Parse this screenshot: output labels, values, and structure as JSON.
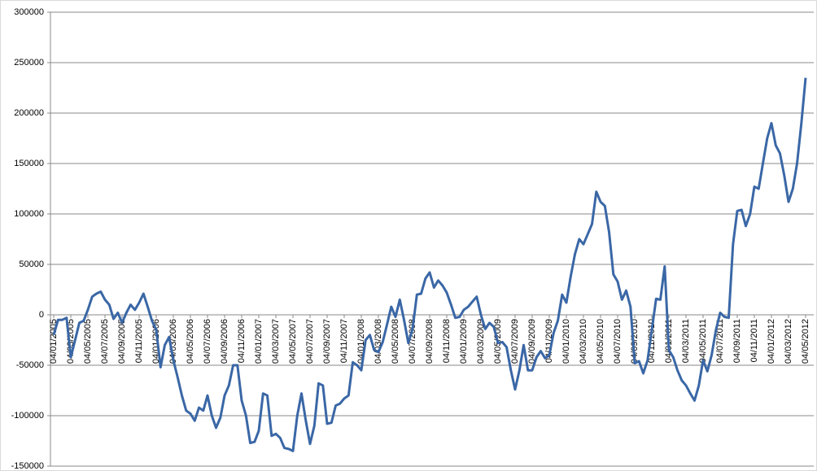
{
  "chart_data": {
    "type": "line",
    "color": "#3a67a6",
    "ylim": [
      -150000,
      300000
    ],
    "yticks": [
      -150000,
      -100000,
      -50000,
      0,
      50000,
      100000,
      150000,
      200000,
      250000,
      300000
    ],
    "grid": true,
    "categories": [
      "04/01/2005",
      null,
      null,
      null,
      "04/03/2005",
      null,
      null,
      null,
      "04/05/2005",
      null,
      null,
      null,
      "04/07/2005",
      null,
      null,
      null,
      "04/09/2005",
      null,
      null,
      null,
      "04/11/2005",
      null,
      null,
      null,
      "04/01/2006",
      null,
      null,
      null,
      "04/03/2006",
      null,
      null,
      null,
      "04/05/2006",
      null,
      null,
      null,
      "04/07/2006",
      null,
      null,
      null,
      "04/09/2006",
      null,
      null,
      null,
      "04/11/2006",
      null,
      null,
      null,
      "04/01/2007",
      null,
      null,
      null,
      "04/03/2007",
      null,
      null,
      null,
      "04/05/2007",
      null,
      null,
      null,
      "04/07/2007",
      null,
      null,
      null,
      "04/09/2007",
      null,
      null,
      null,
      "04/11/2007",
      null,
      null,
      null,
      "04/01/2008",
      null,
      null,
      null,
      "04/03/2008",
      null,
      null,
      null,
      "04/05/2008",
      null,
      null,
      null,
      "04/07/2008",
      null,
      null,
      null,
      "04/09/2008",
      null,
      null,
      null,
      "04/11/2008",
      null,
      null,
      null,
      "04/01/2009",
      null,
      null,
      null,
      "04/03/2009",
      null,
      null,
      null,
      "04/05/2009",
      null,
      null,
      null,
      "04/07/2009",
      null,
      null,
      null,
      "04/09/2009",
      null,
      null,
      null,
      "04/11/2009",
      null,
      null,
      null,
      "04/01/2010",
      null,
      null,
      null,
      "04/03/2010",
      null,
      null,
      null,
      "04/05/2010",
      null,
      null,
      null,
      "04/07/2010",
      null,
      null,
      null,
      "04/09/2010",
      null,
      null,
      null,
      "04/11/2010",
      null,
      null,
      null,
      "04/01/2011",
      null,
      null,
      null,
      "04/03/2011",
      null,
      null,
      null,
      "04/05/2011",
      null,
      null,
      null,
      "04/07/2011",
      null,
      null,
      null,
      "04/09/2011",
      null,
      null,
      null,
      "04/11/2011",
      null,
      null,
      null,
      "04/01/2012",
      null,
      null,
      null,
      "04/03/2012",
      null,
      null,
      null,
      "04/05/2012"
    ],
    "values": [
      -20000,
      -5000,
      -5000,
      -3000,
      -42000,
      -25000,
      -8000,
      -6000,
      5000,
      18000,
      21000,
      23000,
      15000,
      10000,
      -4000,
      2000,
      -8000,
      2000,
      10000,
      5000,
      12000,
      21000,
      8000,
      -6000,
      -15000,
      -52000,
      -30000,
      -22000,
      -45000,
      -62000,
      -80000,
      -95000,
      -98000,
      -105000,
      -92000,
      -95000,
      -80000,
      -100000,
      -112000,
      -102000,
      -80000,
      -70000,
      -50000,
      -50000,
      -85000,
      -100000,
      -127000,
      -126000,
      -115000,
      -78000,
      -80000,
      -120000,
      -118000,
      -122000,
      -132000,
      -133000,
      -135000,
      -100000,
      -78000,
      -105000,
      -128000,
      -110000,
      -68000,
      -70000,
      -108000,
      -107000,
      -90000,
      -88000,
      -83000,
      -80000,
      -47000,
      -50000,
      -55000,
      -25000,
      -20000,
      -35000,
      -37000,
      -27000,
      -10000,
      8000,
      -2000,
      15000,
      -5000,
      -28000,
      -14000,
      20000,
      21000,
      36000,
      42000,
      27000,
      34000,
      29000,
      22000,
      10000,
      -3000,
      -2000,
      5000,
      8000,
      13000,
      18000,
      0,
      -14000,
      -8000,
      -12000,
      -28000,
      -27000,
      -32000,
      -55000,
      -74000,
      -55000,
      -30000,
      -55000,
      -55000,
      -42000,
      -36000,
      -43000,
      -40000,
      -18000,
      -6000,
      20000,
      12000,
      38000,
      60000,
      75000,
      70000,
      80000,
      90000,
      122000,
      112000,
      108000,
      82000,
      40000,
      33000,
      15000,
      24000,
      8000,
      -48000,
      -46000,
      -58000,
      -45000,
      -15000,
      16000,
      15000,
      48000,
      -35000,
      -42000,
      -55000,
      -65000,
      -70000,
      -78000,
      -85000,
      -70000,
      -45000,
      -56000,
      -40000,
      -15000,
      2000,
      -2000,
      -3000,
      70000,
      103000,
      104000,
      88000,
      100000,
      127000,
      125000,
      150000,
      175000,
      190000,
      168000,
      160000,
      138000,
      112000,
      125000,
      150000,
      190000,
      235000
    ]
  }
}
